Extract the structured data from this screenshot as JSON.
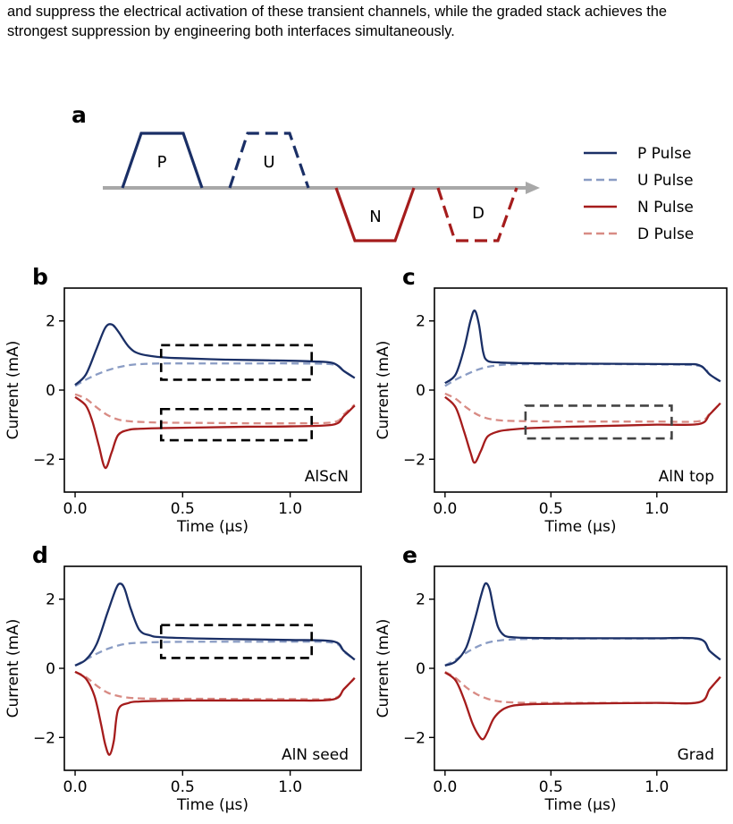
{
  "intro_text": "and suppress the electrical activation of these transient channels, while the graded stack achieves the strongest suppression by engineering both interfaces simultaneously.",
  "panel_a": {
    "label": "a",
    "pulse_letters": [
      "P",
      "U",
      "N",
      "D"
    ],
    "legend": [
      "P Pulse",
      "U Pulse",
      "N Pulse",
      "D Pulse"
    ]
  },
  "colors": {
    "p_pulse": "#1a2f66",
    "u_pulse": "#8a9cc4",
    "n_pulse": "#a51c1c",
    "d_pulse": "#d88b84",
    "axis_arrow": "#a8a8a8",
    "box_dark": "#000000",
    "box_gray": "#444444"
  },
  "chart_data": [
    {
      "type": "line",
      "label": "b",
      "annotation": "AlScN",
      "xlabel": "Time (µs)",
      "ylabel": "Current (mA)",
      "xlim": [
        -0.05,
        1.33
      ],
      "ylim": [
        -2.95,
        2.95
      ],
      "xticks": [
        0.0,
        0.5,
        1.0
      ],
      "xtick_labels": [
        "0.0",
        "0.5",
        "1.0"
      ],
      "yticks": [
        2,
        0,
        -2
      ],
      "ytick_labels": [
        "2",
        "0",
        "−2"
      ],
      "peaks": {
        "P": 1.9,
        "N": -2.25
      },
      "series": [
        {
          "name": "P Pulse",
          "x": [
            0,
            0.05,
            0.1,
            0.14,
            0.17,
            0.2,
            0.25,
            0.3,
            0.4,
            0.5,
            0.7,
            0.9,
            1.1,
            1.2,
            1.25,
            1.3
          ],
          "y": [
            0.15,
            0.45,
            1.2,
            1.8,
            1.9,
            1.7,
            1.25,
            1.05,
            0.95,
            0.92,
            0.88,
            0.86,
            0.83,
            0.78,
            0.55,
            0.35
          ]
        },
        {
          "name": "U Pulse",
          "x": [
            0,
            0.05,
            0.1,
            0.15,
            0.2,
            0.25,
            0.3,
            0.4,
            0.6,
            0.8,
            1.0,
            1.2,
            1.25,
            1.3
          ],
          "y": [
            0.12,
            0.3,
            0.45,
            0.57,
            0.66,
            0.72,
            0.75,
            0.77,
            0.77,
            0.77,
            0.77,
            0.74,
            0.55,
            0.35
          ]
        },
        {
          "name": "N Pulse",
          "x": [
            0,
            0.05,
            0.08,
            0.11,
            0.14,
            0.17,
            0.2,
            0.25,
            0.3,
            0.4,
            0.6,
            0.8,
            1.0,
            1.2,
            1.25,
            1.3
          ],
          "y": [
            -0.2,
            -0.45,
            -0.9,
            -1.6,
            -2.25,
            -1.8,
            -1.3,
            -1.15,
            -1.12,
            -1.1,
            -1.08,
            -1.06,
            -1.05,
            -1.0,
            -0.75,
            -0.45
          ]
        },
        {
          "name": "D Pulse",
          "x": [
            0,
            0.05,
            0.1,
            0.15,
            0.2,
            0.25,
            0.3,
            0.4,
            0.6,
            0.8,
            1.0,
            1.2,
            1.25,
            1.3
          ],
          "y": [
            -0.12,
            -0.25,
            -0.5,
            -0.72,
            -0.85,
            -0.9,
            -0.92,
            -0.94,
            -0.95,
            -0.96,
            -0.96,
            -0.93,
            -0.7,
            -0.42
          ]
        }
      ],
      "boxes": [
        {
          "x0": 0.4,
          "x1": 1.1,
          "y0": 0.3,
          "y1": 1.3,
          "color": "box_dark"
        },
        {
          "x0": 0.4,
          "x1": 1.1,
          "y0": -1.45,
          "y1": -0.55,
          "color": "box_dark"
        }
      ]
    },
    {
      "type": "line",
      "label": "c",
      "annotation": "AlN top",
      "xlabel": "Time (µs)",
      "ylabel": "Current (mA)",
      "xlim": [
        -0.05,
        1.33
      ],
      "ylim": [
        -2.95,
        2.95
      ],
      "xticks": [
        0.0,
        0.5,
        1.0
      ],
      "xtick_labels": [
        "0.0",
        "0.5",
        "1.0"
      ],
      "yticks": [
        2,
        0,
        -2
      ],
      "ytick_labels": [
        "2",
        "0",
        "−2"
      ],
      "peaks": {
        "P": 2.3,
        "N": -2.1
      },
      "series": [
        {
          "name": "P Pulse",
          "x": [
            0,
            0.05,
            0.09,
            0.12,
            0.14,
            0.16,
            0.18,
            0.2,
            0.25,
            0.35,
            0.5,
            0.8,
            1.1,
            1.2,
            1.25,
            1.3
          ],
          "y": [
            0.2,
            0.45,
            1.2,
            2.0,
            2.3,
            1.9,
            1.1,
            0.85,
            0.8,
            0.78,
            0.77,
            0.76,
            0.75,
            0.72,
            0.45,
            0.25
          ]
        },
        {
          "name": "U Pulse",
          "x": [
            0,
            0.05,
            0.1,
            0.15,
            0.2,
            0.25,
            0.3,
            0.4,
            0.6,
            0.8,
            1.0,
            1.2,
            1.25,
            1.3
          ],
          "y": [
            0.12,
            0.3,
            0.45,
            0.58,
            0.67,
            0.72,
            0.74,
            0.75,
            0.75,
            0.75,
            0.74,
            0.7,
            0.45,
            0.25
          ]
        },
        {
          "name": "N Pulse",
          "x": [
            0,
            0.05,
            0.09,
            0.12,
            0.14,
            0.17,
            0.2,
            0.25,
            0.3,
            0.4,
            0.6,
            0.8,
            1.0,
            1.2,
            1.25,
            1.3
          ],
          "y": [
            -0.2,
            -0.5,
            -1.2,
            -1.8,
            -2.1,
            -1.75,
            -1.35,
            -1.2,
            -1.15,
            -1.1,
            -1.06,
            -1.03,
            -1.0,
            -0.98,
            -0.7,
            -0.38
          ]
        },
        {
          "name": "D Pulse",
          "x": [
            0,
            0.05,
            0.1,
            0.15,
            0.2,
            0.25,
            0.3,
            0.4,
            0.6,
            0.8,
            1.0,
            1.2,
            1.25,
            1.3
          ],
          "y": [
            -0.1,
            -0.25,
            -0.5,
            -0.7,
            -0.82,
            -0.87,
            -0.89,
            -0.9,
            -0.91,
            -0.91,
            -0.91,
            -0.9,
            -0.68,
            -0.38
          ]
        }
      ],
      "boxes": [
        {
          "x0": 0.38,
          "x1": 1.07,
          "y0": -1.4,
          "y1": -0.45,
          "color": "box_gray"
        }
      ]
    },
    {
      "type": "line",
      "label": "d",
      "annotation": "AlN seed",
      "xlabel": "Time (µs)",
      "ylabel": "Current (mA)",
      "xlim": [
        -0.05,
        1.33
      ],
      "ylim": [
        -2.95,
        2.95
      ],
      "xticks": [
        0.0,
        0.5,
        1.0
      ],
      "xtick_labels": [
        "0.0",
        "0.5",
        "1.0"
      ],
      "yticks": [
        2,
        0,
        -2
      ],
      "ytick_labels": [
        "2",
        "0",
        "−2"
      ],
      "peaks": {
        "P": 2.45,
        "N": -2.5
      },
      "series": [
        {
          "name": "P Pulse",
          "x": [
            0,
            0.05,
            0.1,
            0.15,
            0.19,
            0.21,
            0.23,
            0.26,
            0.3,
            0.35,
            0.4,
            0.6,
            0.8,
            1.0,
            1.2,
            1.25,
            1.3
          ],
          "y": [
            0.08,
            0.25,
            0.7,
            1.6,
            2.3,
            2.45,
            2.3,
            1.7,
            1.1,
            0.95,
            0.9,
            0.86,
            0.84,
            0.82,
            0.78,
            0.5,
            0.25
          ]
        },
        {
          "name": "U Pulse",
          "x": [
            0,
            0.05,
            0.1,
            0.15,
            0.2,
            0.25,
            0.3,
            0.4,
            0.6,
            0.8,
            1.0,
            1.2,
            1.25,
            1.3
          ],
          "y": [
            0.08,
            0.25,
            0.42,
            0.56,
            0.66,
            0.72,
            0.74,
            0.76,
            0.77,
            0.77,
            0.77,
            0.74,
            0.48,
            0.25
          ]
        },
        {
          "name": "N Pulse",
          "x": [
            0,
            0.05,
            0.09,
            0.12,
            0.14,
            0.16,
            0.18,
            0.2,
            0.25,
            0.3,
            0.4,
            0.6,
            0.8,
            1.0,
            1.2,
            1.25,
            1.3
          ],
          "y": [
            -0.1,
            -0.3,
            -0.8,
            -1.6,
            -2.2,
            -2.5,
            -2.1,
            -1.2,
            -1.0,
            -0.96,
            -0.94,
            -0.93,
            -0.93,
            -0.93,
            -0.9,
            -0.6,
            -0.28
          ]
        },
        {
          "name": "D Pulse",
          "x": [
            0,
            0.05,
            0.1,
            0.15,
            0.2,
            0.25,
            0.3,
            0.4,
            0.6,
            0.8,
            1.0,
            1.2,
            1.25,
            1.3
          ],
          "y": [
            -0.1,
            -0.25,
            -0.5,
            -0.7,
            -0.8,
            -0.85,
            -0.87,
            -0.88,
            -0.88,
            -0.89,
            -0.89,
            -0.87,
            -0.6,
            -0.28
          ]
        }
      ],
      "boxes": [
        {
          "x0": 0.4,
          "x1": 1.1,
          "y0": 0.3,
          "y1": 1.25,
          "color": "box_dark"
        }
      ]
    },
    {
      "type": "line",
      "label": "e",
      "annotation": "Grad",
      "xlabel": "Time (µs)",
      "ylabel": "Current (mA)",
      "xlim": [
        -0.05,
        1.33
      ],
      "ylim": [
        -2.95,
        2.95
      ],
      "xticks": [
        0.0,
        0.5,
        1.0
      ],
      "xtick_labels": [
        "0.0",
        "0.5",
        "1.0"
      ],
      "yticks": [
        2,
        0,
        -2
      ],
      "ytick_labels": [
        "2",
        "0",
        "−2"
      ],
      "peaks": {
        "P": 2.45,
        "N": -2.05
      },
      "series": [
        {
          "name": "P Pulse",
          "x": [
            0,
            0.05,
            0.1,
            0.14,
            0.17,
            0.19,
            0.21,
            0.23,
            0.25,
            0.28,
            0.32,
            0.4,
            0.6,
            0.8,
            1.0,
            1.2,
            1.25,
            1.3
          ],
          "y": [
            0.08,
            0.2,
            0.6,
            1.4,
            2.1,
            2.45,
            2.3,
            1.7,
            1.2,
            0.95,
            0.9,
            0.88,
            0.87,
            0.87,
            0.87,
            0.85,
            0.5,
            0.25
          ]
        },
        {
          "name": "U Pulse",
          "x": [
            0,
            0.05,
            0.1,
            0.15,
            0.2,
            0.25,
            0.3,
            0.4,
            0.6,
            0.8,
            1.0,
            1.2,
            1.25,
            1.3
          ],
          "y": [
            0.08,
            0.25,
            0.45,
            0.62,
            0.74,
            0.8,
            0.83,
            0.85,
            0.86,
            0.86,
            0.86,
            0.84,
            0.5,
            0.25
          ]
        },
        {
          "name": "N Pulse",
          "x": [
            0,
            0.05,
            0.09,
            0.13,
            0.16,
            0.18,
            0.2,
            0.23,
            0.27,
            0.32,
            0.4,
            0.6,
            0.8,
            1.0,
            1.2,
            1.25,
            1.3
          ],
          "y": [
            -0.12,
            -0.35,
            -0.9,
            -1.6,
            -1.95,
            -2.05,
            -1.85,
            -1.45,
            -1.2,
            -1.08,
            -1.04,
            -1.02,
            -1.01,
            -1.0,
            -0.98,
            -0.6,
            -0.25
          ]
        },
        {
          "name": "D Pulse",
          "x": [
            0,
            0.05,
            0.1,
            0.15,
            0.2,
            0.25,
            0.3,
            0.4,
            0.6,
            0.8,
            1.0,
            1.2,
            1.25,
            1.3
          ],
          "y": [
            -0.1,
            -0.28,
            -0.55,
            -0.75,
            -0.88,
            -0.95,
            -0.98,
            -1.0,
            -1.0,
            -1.0,
            -1.0,
            -0.98,
            -0.6,
            -0.25
          ]
        }
      ],
      "boxes": []
    }
  ]
}
